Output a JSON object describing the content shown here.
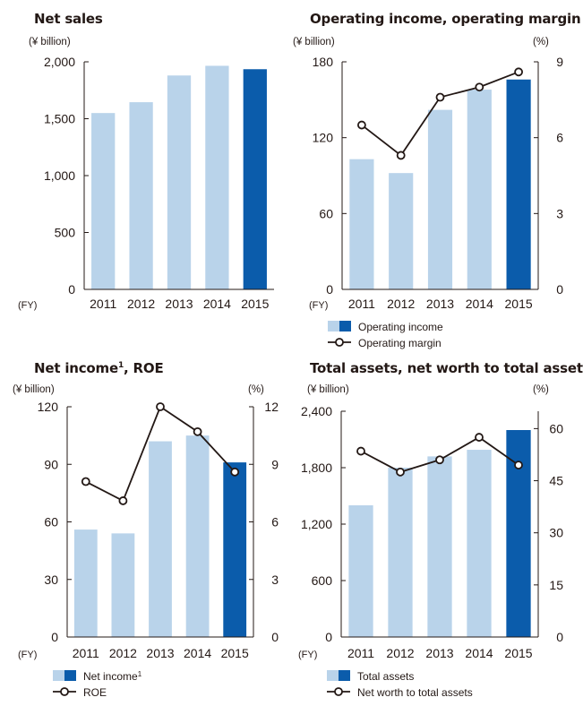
{
  "colors": {
    "light_bar": "#b9d3ea",
    "dark_bar": "#0b5cab",
    "line": "#231815",
    "axis": "#231815"
  },
  "chart_data": [
    {
      "type": "bar",
      "title": "Net sales",
      "unit_left": "(¥ billion)",
      "x_prefix": "(FY)",
      "categories": [
        "2011",
        "2012",
        "2013",
        "2014",
        "2015"
      ],
      "series": [
        {
          "values": [
            1550,
            1645,
            1880,
            1965,
            1935
          ]
        }
      ],
      "ylim": [
        0,
        2000
      ],
      "yticks": [
        "2,000",
        "1,500",
        "1,000",
        "500",
        "0"
      ],
      "ytick_values": [
        2000,
        1500,
        1000,
        500,
        0
      ],
      "highlight_last": true
    },
    {
      "type": "bar",
      "title": "Operating income, operating margin",
      "unit_left": "(¥ billion)",
      "unit_right": "(%)",
      "x_prefix": "(FY)",
      "categories": [
        "2011",
        "2012",
        "2013",
        "2014",
        "2015"
      ],
      "series": [
        {
          "name": "Operating income",
          "kind": "bar",
          "axis": "left",
          "values": [
            103,
            92,
            142,
            158,
            166
          ]
        },
        {
          "name": "Operating margin",
          "kind": "line",
          "axis": "right",
          "values": [
            6.5,
            5.3,
            7.6,
            8.0,
            8.6
          ]
        }
      ],
      "ylim": [
        0,
        180
      ],
      "yticks": [
        "180",
        "120",
        "60",
        "0"
      ],
      "ytick_values": [
        180,
        120,
        60,
        0
      ],
      "y2lim": [
        0,
        9
      ],
      "y2ticks": [
        "9",
        "6",
        "3",
        "0"
      ],
      "y2tick_values": [
        9,
        6,
        3,
        0
      ],
      "legend": [
        "Operating income",
        "Operating margin"
      ],
      "highlight_last": true
    },
    {
      "type": "bar",
      "title": "Net income",
      "title_sup": "1",
      "title_tail": ", ROE",
      "unit_left": "(¥ billion)",
      "unit_right": "(%)",
      "x_prefix": "(FY)",
      "categories": [
        "2011",
        "2012",
        "2013",
        "2014",
        "2015"
      ],
      "series": [
        {
          "name": "Net income",
          "name_sup": "1",
          "kind": "bar",
          "axis": "left",
          "values": [
            56,
            54,
            102,
            105,
            91
          ]
        },
        {
          "name": "ROE",
          "kind": "line",
          "axis": "right",
          "values": [
            8.1,
            7.1,
            12.0,
            10.7,
            8.6
          ]
        }
      ],
      "ylim": [
        0,
        120
      ],
      "yticks": [
        "120",
        "90",
        "60",
        "30",
        "0"
      ],
      "ytick_values": [
        120,
        90,
        60,
        30,
        0
      ],
      "y2lim": [
        0,
        12
      ],
      "y2ticks": [
        "12",
        "9",
        "6",
        "3",
        "0"
      ],
      "y2tick_values": [
        12,
        9,
        6,
        3,
        0
      ],
      "legend": [
        "Net income",
        "ROE"
      ],
      "legend_sup": [
        "1",
        ""
      ],
      "highlight_last": true
    },
    {
      "type": "bar",
      "title": "Total assets, net worth to total assets",
      "unit_left": "(¥ billion)",
      "unit_right": "(%)",
      "x_prefix": "(FY)",
      "categories": [
        "2011",
        "2012",
        "2013",
        "2014",
        "2015"
      ],
      "series": [
        {
          "name": "Total assets",
          "kind": "bar",
          "axis": "left",
          "values": [
            1400,
            1800,
            1920,
            1990,
            2200
          ]
        },
        {
          "name": "Net worth to total assets",
          "kind": "line",
          "axis": "right",
          "values": [
            53.5,
            47.5,
            51.0,
            57.5,
            49.5
          ]
        }
      ],
      "ylim": [
        0,
        2400
      ],
      "yticks": [
        "2,400",
        "1,800",
        "1,200",
        "600",
        "0"
      ],
      "ytick_values": [
        2400,
        1800,
        1200,
        600,
        0
      ],
      "y2lim": [
        0,
        65
      ],
      "y2ticks": [
        "60",
        "45",
        "30",
        "15",
        "0"
      ],
      "y2tick_values": [
        60,
        45,
        30,
        15,
        0
      ],
      "legend": [
        "Total assets",
        "Net worth to total assets"
      ],
      "highlight_last": true
    }
  ]
}
